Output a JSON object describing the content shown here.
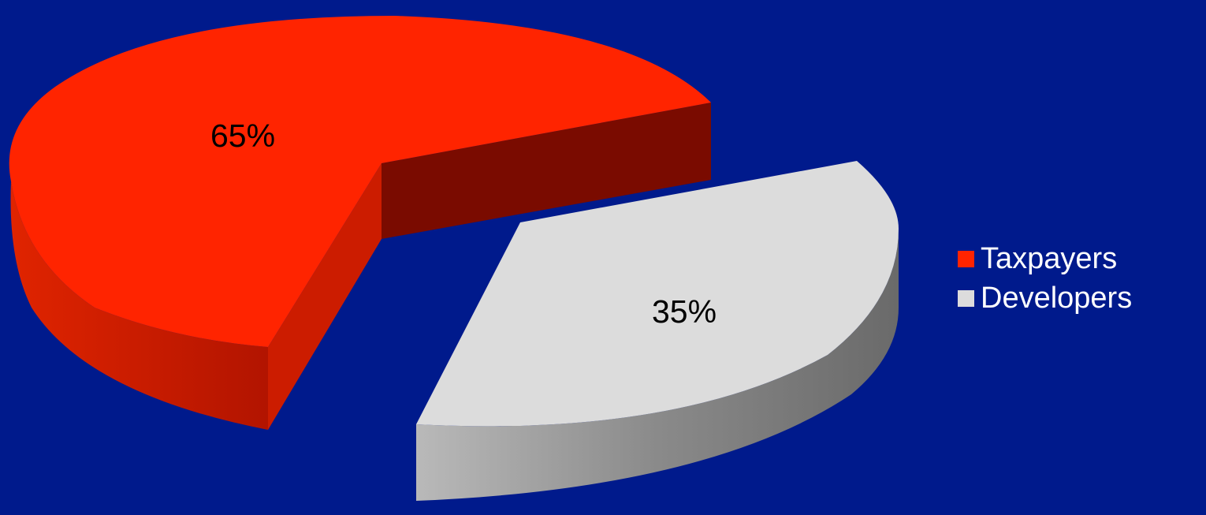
{
  "chart_data": {
    "type": "pie",
    "style": "3d-exploded",
    "slices": [
      {
        "name": "Taxpayers",
        "value": 65,
        "label": "65%",
        "color": "#ff2400"
      },
      {
        "name": "Developers",
        "value": 35,
        "label": "35%",
        "color": "#dcdcdc"
      }
    ],
    "legend_position": "right"
  }
}
